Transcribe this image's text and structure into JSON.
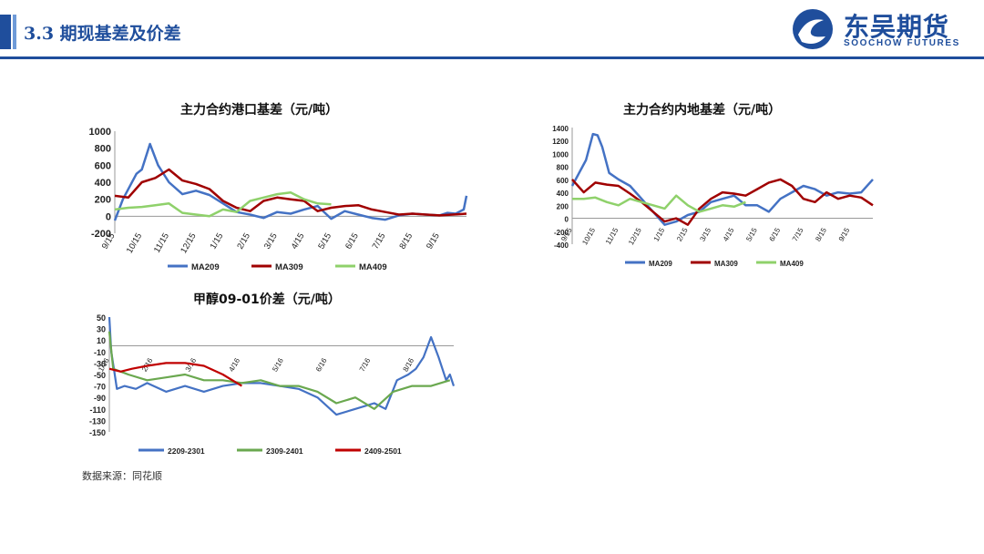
{
  "header": {
    "title": "3.3 期现基差及价差",
    "logo_cn": "东吴期货",
    "logo_en": "SOOCHOW FUTURES"
  },
  "source": "数据来源：同花顺",
  "colors": {
    "blue": "#4472c4",
    "red": "#a00000",
    "green": "#8fd16b",
    "brand": "#1f4e9c"
  },
  "chart_data": [
    {
      "type": "line",
      "title": "主力合约港口基差（元/吨）",
      "ylim": [
        -200,
        1000
      ],
      "yticks": [
        1000,
        800,
        600,
        400,
        200,
        0,
        -200
      ],
      "xticks": [
        "9/15",
        "10/15",
        "11/15",
        "12/15",
        "1/15",
        "2/15",
        "3/15",
        "4/15",
        "5/15",
        "6/15",
        "7/15",
        "8/15",
        "9/15"
      ],
      "series": [
        {
          "name": "MA209",
          "color": "#4472c4",
          "x": [
            0,
            0.3,
            0.6,
            0.8,
            1.0,
            1.3,
            1.6,
            2.0,
            2.5,
            3.0,
            3.5,
            4.0,
            4.5,
            5.0,
            5.5,
            6.0,
            6.5,
            7.0,
            7.5,
            8.0,
            8.5,
            9.0,
            9.5,
            10.0,
            10.5,
            11.0,
            11.5,
            12.0,
            12.3,
            12.6,
            12.9,
            13.0
          ],
          "values": [
            -50,
            200,
            380,
            500,
            550,
            850,
            600,
            400,
            260,
            300,
            250,
            150,
            50,
            20,
            -20,
            50,
            30,
            80,
            120,
            -30,
            60,
            20,
            -20,
            -40,
            10,
            30,
            20,
            10,
            40,
            30,
            80,
            240
          ]
        },
        {
          "name": "MA309",
          "color": "#a00000",
          "x": [
            0,
            0.5,
            1.0,
            1.5,
            2.0,
            2.5,
            3.0,
            3.5,
            4.0,
            4.5,
            5.0,
            5.5,
            6.0,
            6.5,
            7.0,
            7.5,
            8.0,
            8.5,
            9.0,
            9.5,
            10.0,
            10.5,
            11.0,
            11.5,
            12.0,
            12.5,
            13.0
          ],
          "values": [
            240,
            220,
            400,
            450,
            550,
            420,
            380,
            320,
            180,
            100,
            60,
            180,
            220,
            200,
            180,
            60,
            100,
            120,
            130,
            80,
            50,
            20,
            30,
            20,
            10,
            20,
            30
          ]
        },
        {
          "name": "MA409",
          "color": "#8fd16b",
          "x": [
            0,
            0.5,
            1.0,
            1.5,
            2.0,
            2.5,
            3.0,
            3.5,
            4.0,
            4.5,
            5.0,
            5.5,
            6.0,
            6.5,
            7.0,
            7.5,
            8.0
          ],
          "values": [
            80,
            100,
            110,
            130,
            150,
            40,
            20,
            0,
            80,
            50,
            180,
            220,
            260,
            280,
            200,
            150,
            140
          ]
        }
      ]
    },
    {
      "type": "line",
      "title": "主力合约内地基差（元/吨）",
      "ylim": [
        -400,
        1400
      ],
      "yticks": [
        1400,
        1200,
        1000,
        800,
        600,
        400,
        200,
        0,
        -200,
        -400
      ],
      "xticks": [
        "9/15",
        "10/15",
        "11/15",
        "12/15",
        "1/15",
        "2/15",
        "3/15",
        "4/15",
        "5/15",
        "6/15",
        "7/15",
        "8/15",
        "9/15"
      ],
      "series": [
        {
          "name": "MA209",
          "color": "#4472c4",
          "x": [
            0,
            0.3,
            0.6,
            0.9,
            1.1,
            1.3,
            1.6,
            2.0,
            2.5,
            3.0,
            3.5,
            4.0,
            4.5,
            5.0,
            5.5,
            6.0,
            6.5,
            7.0,
            7.5,
            8.0,
            8.5,
            9.0,
            9.5,
            10.0,
            10.5,
            11.0,
            11.5,
            12.0,
            12.5,
            13.0
          ],
          "values": [
            500,
            700,
            900,
            1300,
            1280,
            1100,
            700,
            600,
            500,
            300,
            100,
            -100,
            -50,
            50,
            100,
            250,
            300,
            350,
            200,
            200,
            100,
            300,
            400,
            500,
            450,
            350,
            400,
            380,
            400,
            600
          ]
        },
        {
          "name": "MA309",
          "color": "#a00000",
          "x": [
            0,
            0.5,
            1.0,
            1.5,
            2.0,
            2.5,
            3.0,
            3.5,
            4.0,
            4.5,
            5.0,
            5.5,
            6.0,
            6.5,
            7.0,
            7.5,
            8.0,
            8.5,
            9.0,
            9.5,
            10.0,
            10.5,
            11.0,
            11.5,
            12.0,
            12.5,
            13.0
          ],
          "values": [
            600,
            400,
            550,
            520,
            500,
            380,
            250,
            100,
            -50,
            0,
            -100,
            150,
            300,
            400,
            380,
            350,
            450,
            550,
            600,
            500,
            300,
            250,
            400,
            300,
            350,
            320,
            200
          ]
        },
        {
          "name": "MA409",
          "color": "#8fd16b",
          "x": [
            0,
            0.5,
            1.0,
            1.5,
            2.0,
            2.5,
            3.0,
            3.5,
            4.0,
            4.5,
            5.0,
            5.5,
            6.0,
            6.5,
            7.0,
            7.5
          ],
          "values": [
            300,
            300,
            320,
            250,
            200,
            300,
            250,
            200,
            150,
            350,
            200,
            100,
            150,
            200,
            180,
            250
          ]
        }
      ]
    },
    {
      "type": "line",
      "title": "甲醇09-01价差（元/吨）",
      "ylim": [
        -150,
        50
      ],
      "yticks": [
        50,
        30,
        10,
        -10,
        -30,
        -50,
        -70,
        -90,
        -110,
        -130,
        -150
      ],
      "xticks": [
        "1/16",
        "2/16",
        "3/16",
        "4/16",
        "5/16",
        "6/16",
        "7/16",
        "8/16"
      ],
      "series": [
        {
          "name": "2209-2301",
          "color": "#4472c4",
          "x": [
            0,
            0.05,
            0.12,
            0.2,
            0.4,
            0.7,
            1.0,
            1.5,
            2.0,
            2.5,
            3.0,
            3.5,
            4.0,
            4.5,
            5.0,
            5.5,
            6.0,
            6.5,
            7.0,
            7.3,
            7.6,
            7.9,
            8.1,
            8.3,
            8.5,
            8.7,
            8.9,
            9.0,
            9.1
          ],
          "values": [
            50,
            -10,
            -40,
            -75,
            -70,
            -75,
            -65,
            -80,
            -70,
            -80,
            -70,
            -65,
            -65,
            -70,
            -75,
            -90,
            -120,
            -110,
            -100,
            -110,
            -60,
            -50,
            -40,
            -20,
            15,
            -20,
            -60,
            -50,
            -70
          ]
        },
        {
          "name": "2309-2401",
          "color": "#6aa84f",
          "x": [
            0,
            0.1,
            0.3,
            0.5,
            1.0,
            1.5,
            2.0,
            2.5,
            3.0,
            3.5,
            4.0,
            4.5,
            5.0,
            5.5,
            6.0,
            6.5,
            7.0,
            7.5,
            8.0,
            8.5,
            9.0
          ],
          "values": [
            25,
            -40,
            -45,
            -50,
            -60,
            -55,
            -50,
            -60,
            -60,
            -65,
            -60,
            -70,
            -70,
            -80,
            -100,
            -90,
            -110,
            -80,
            -70,
            -70,
            -60
          ]
        },
        {
          "name": "2409-2501",
          "color": "#c00000",
          "x": [
            0,
            0.3,
            0.6,
            1.0,
            1.5,
            2.0,
            2.5,
            3.0,
            3.5
          ],
          "values": [
            -40,
            -45,
            -40,
            -35,
            -30,
            -30,
            -35,
            -50,
            -70
          ]
        }
      ]
    }
  ]
}
